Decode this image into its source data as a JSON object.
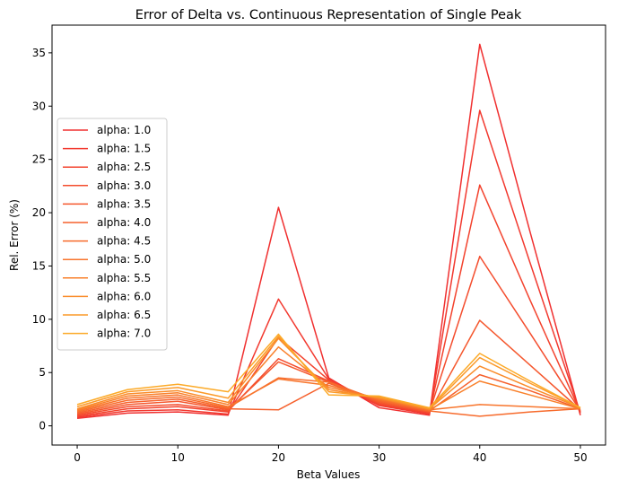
{
  "chart_data": {
    "type": "line",
    "title": "Error of Delta vs. Continuous Representation of Single Peak",
    "xlabel": "Beta Values",
    "ylabel": "Rel. Error (%)",
    "xlim": [
      -2.5,
      52.5
    ],
    "ylim": [
      -1.8,
      37.6
    ],
    "xticks": [
      0,
      10,
      20,
      30,
      40,
      50
    ],
    "yticks": [
      0,
      5,
      10,
      15,
      20,
      25,
      30,
      35
    ],
    "legend_position": "center-left",
    "x": [
      0,
      5,
      10,
      15,
      20,
      25,
      30,
      35,
      40,
      45,
      50
    ],
    "series": [
      {
        "name": "alpha: 1.0",
        "color": "#f03030",
        "values": [
          0.7,
          1.2,
          1.3,
          1.0,
          20.5,
          4.5,
          1.7,
          1.0,
          35.8,
          18.2,
          1.0
        ]
      },
      {
        "name": "alpha: 1.5",
        "color": "#f2392f",
        "values": [
          0.8,
          1.4,
          1.5,
          1.1,
          11.9,
          4.4,
          1.9,
          1.1,
          29.6,
          15.3,
          1.2
        ]
      },
      {
        "name": "alpha: 2.5",
        "color": "#f3432e",
        "values": [
          0.9,
          1.6,
          1.8,
          1.3,
          8.3,
          4.3,
          2.0,
          1.2,
          22.6,
          11.8,
          1.3
        ]
      },
      {
        "name": "alpha: 3.0",
        "color": "#f44d2e",
        "values": [
          1.0,
          1.8,
          2.0,
          1.4,
          6.3,
          4.2,
          2.1,
          1.3,
          15.9,
          8.7,
          1.4
        ]
      },
      {
        "name": "alpha: 3.5",
        "color": "#f5572d",
        "values": [
          1.1,
          2.0,
          2.3,
          1.5,
          6.0,
          4.1,
          2.2,
          1.3,
          9.9,
          5.7,
          1.5
        ]
      },
      {
        "name": "alpha: 4.0",
        "color": "#f6612d",
        "values": [
          1.2,
          2.2,
          2.5,
          1.6,
          1.5,
          4.0,
          2.3,
          1.4,
          4.8,
          3.3,
          1.6
        ]
      },
      {
        "name": "alpha: 4.5",
        "color": "#f76b2c",
        "values": [
          1.3,
          2.4,
          2.7,
          1.7,
          4.5,
          4.1,
          2.4,
          1.4,
          0.9,
          1.3,
          1.6
        ]
      },
      {
        "name": "alpha: 5.0",
        "color": "#f8752c",
        "values": [
          1.4,
          2.6,
          2.9,
          1.8,
          4.4,
          3.8,
          2.5,
          1.5,
          2.0,
          1.8,
          1.6
        ]
      },
      {
        "name": "alpha: 5.5",
        "color": "#f9802b",
        "values": [
          1.5,
          2.8,
          3.1,
          2.0,
          7.4,
          3.6,
          2.6,
          1.5,
          4.2,
          2.9,
          1.6
        ]
      },
      {
        "name": "alpha: 6.0",
        "color": "#fa8c2a",
        "values": [
          1.6,
          3.0,
          3.3,
          2.2,
          8.2,
          3.4,
          2.6,
          1.6,
          5.6,
          3.6,
          1.7
        ]
      },
      {
        "name": "alpha: 6.5",
        "color": "#fb9a29",
        "values": [
          1.8,
          3.2,
          3.6,
          2.6,
          8.4,
          3.2,
          2.7,
          1.6,
          6.4,
          4.0,
          1.7
        ]
      },
      {
        "name": "alpha: 7.0",
        "color": "#fcaa28",
        "values": [
          2.0,
          3.4,
          3.9,
          3.2,
          8.6,
          2.9,
          2.8,
          1.7,
          6.8,
          4.2,
          1.7
        ]
      }
    ]
  }
}
